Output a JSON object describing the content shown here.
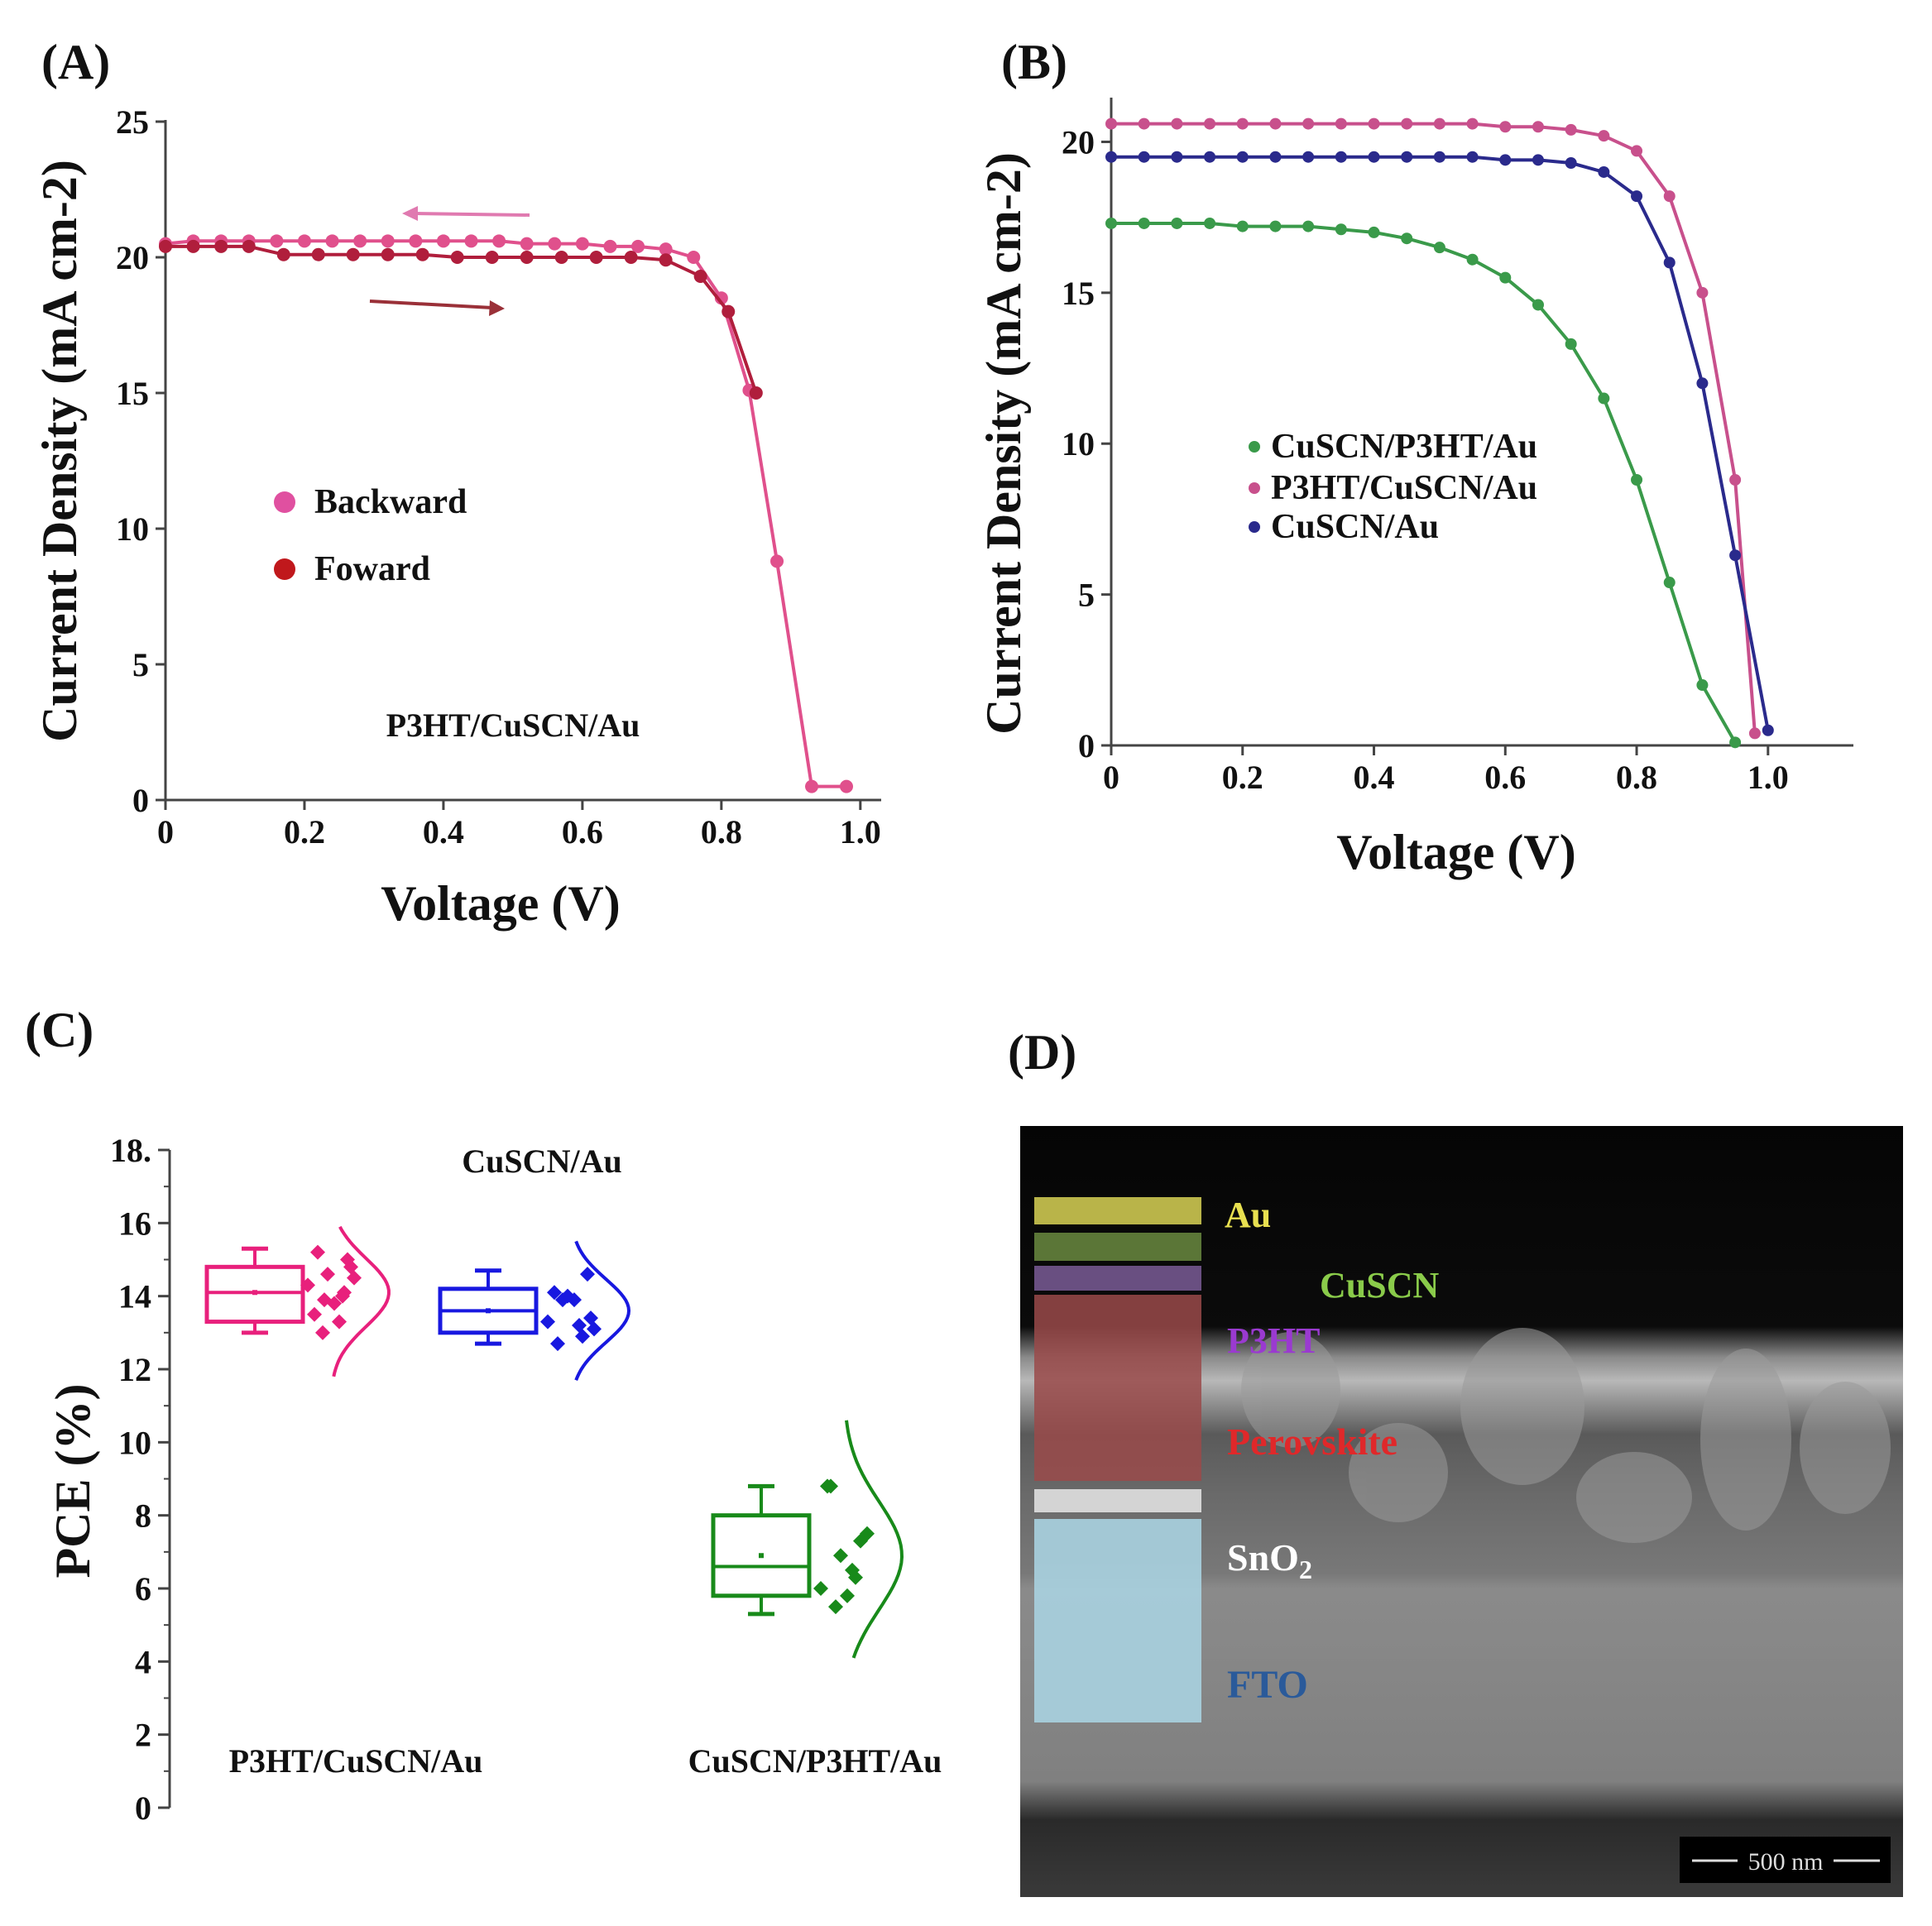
{
  "chart_data": [
    {
      "panel": "(A)",
      "type": "line",
      "xlabel": "Voltage (V)",
      "ylabel": "Current Density (mA cm-2)",
      "xlim": [
        0,
        1.03
      ],
      "ylim": [
        0,
        25
      ],
      "xticks": [
        0,
        0.2,
        0.4,
        0.6,
        0.8,
        1.0
      ],
      "xtick_labels": [
        "0",
        "0.2",
        "0.4",
        "0.6",
        "0.8",
        "1.0"
      ],
      "yticks": [
        0,
        5,
        10,
        15,
        20,
        25
      ],
      "legend_position": "middle-left",
      "annotation": "P3HT/CuSCN/Au",
      "arrows": [
        {
          "series": "Backward",
          "direction": "left"
        },
        {
          "series": "Foward",
          "direction": "right"
        }
      ],
      "series": [
        {
          "name": "Backward",
          "color": "#e0508c",
          "x": [
            0,
            0.04,
            0.08,
            0.12,
            0.16,
            0.2,
            0.24,
            0.28,
            0.32,
            0.36,
            0.4,
            0.44,
            0.48,
            0.52,
            0.56,
            0.6,
            0.64,
            0.68,
            0.72,
            0.76,
            0.8,
            0.84,
            0.88,
            0.93,
            0.98
          ],
          "y": [
            20.5,
            20.6,
            20.6,
            20.6,
            20.6,
            20.6,
            20.6,
            20.6,
            20.6,
            20.6,
            20.6,
            20.6,
            20.6,
            20.5,
            20.5,
            20.5,
            20.4,
            20.4,
            20.3,
            20.0,
            18.5,
            15.1,
            8.8,
            0.5,
            0.5
          ]
        },
        {
          "name": "Foward",
          "color": "#b01e3c",
          "x": [
            0,
            0.04,
            0.08,
            0.12,
            0.17,
            0.22,
            0.27,
            0.32,
            0.37,
            0.42,
            0.47,
            0.52,
            0.57,
            0.62,
            0.67,
            0.72,
            0.77,
            0.81,
            0.85
          ],
          "y": [
            20.4,
            20.4,
            20.4,
            20.4,
            20.1,
            20.1,
            20.1,
            20.1,
            20.1,
            20.0,
            20.0,
            20.0,
            20.0,
            20.0,
            20.0,
            19.9,
            19.3,
            18.0,
            15.0
          ]
        }
      ]
    },
    {
      "panel": "(B)",
      "type": "line",
      "xlabel": "Voltage (V)",
      "ylabel": "Current Density (mA cm-2)",
      "xlim": [
        0,
        1.13
      ],
      "ylim": [
        0,
        21
      ],
      "xticks": [
        0,
        0.2,
        0.4,
        0.6,
        0.8,
        1.0
      ],
      "xtick_labels": [
        "0",
        "0.2",
        "0.4",
        "0.6",
        "0.8",
        "1.0"
      ],
      "yticks": [
        0,
        5,
        10,
        15,
        20
      ],
      "legend_position": "center",
      "series": [
        {
          "name": "CuSCN/P3HT/Au",
          "color": "#3a9a4a",
          "x": [
            0,
            0.05,
            0.1,
            0.15,
            0.2,
            0.25,
            0.3,
            0.35,
            0.4,
            0.45,
            0.5,
            0.55,
            0.6,
            0.65,
            0.7,
            0.75,
            0.8,
            0.85,
            0.9,
            0.95
          ],
          "y": [
            17.3,
            17.3,
            17.3,
            17.3,
            17.2,
            17.2,
            17.2,
            17.1,
            17.0,
            16.8,
            16.5,
            16.1,
            15.5,
            14.6,
            13.3,
            11.5,
            8.8,
            5.4,
            2.0,
            0.1
          ]
        },
        {
          "name": "P3HT/CuSCN/Au",
          "color": "#c8508c",
          "x": [
            0,
            0.05,
            0.1,
            0.15,
            0.2,
            0.25,
            0.3,
            0.35,
            0.4,
            0.45,
            0.5,
            0.55,
            0.6,
            0.65,
            0.7,
            0.75,
            0.8,
            0.85,
            0.9,
            0.95,
            0.98
          ],
          "y": [
            20.6,
            20.6,
            20.6,
            20.6,
            20.6,
            20.6,
            20.6,
            20.6,
            20.6,
            20.6,
            20.6,
            20.6,
            20.5,
            20.5,
            20.4,
            20.2,
            19.7,
            18.2,
            15.0,
            8.8,
            0.4
          ]
        },
        {
          "name": "CuSCN/Au",
          "color": "#2a2a8c",
          "x": [
            0,
            0.05,
            0.1,
            0.15,
            0.2,
            0.25,
            0.3,
            0.35,
            0.4,
            0.45,
            0.5,
            0.55,
            0.6,
            0.65,
            0.7,
            0.75,
            0.8,
            0.85,
            0.9,
            0.95,
            1.0
          ],
          "y": [
            19.5,
            19.5,
            19.5,
            19.5,
            19.5,
            19.5,
            19.5,
            19.5,
            19.5,
            19.5,
            19.5,
            19.5,
            19.4,
            19.4,
            19.3,
            19.0,
            18.2,
            16.0,
            12.0,
            6.3,
            0.5
          ]
        }
      ]
    },
    {
      "panel": "(C)",
      "type": "box",
      "ylabel": "PCE (%)",
      "ylim": [
        0,
        18
      ],
      "yticks": [
        0,
        2,
        4,
        6,
        8,
        10,
        12,
        14,
        16,
        18
      ],
      "ytick_labels": [
        "0",
        "2",
        "4",
        "6",
        "8",
        "10",
        "12",
        "14",
        "16",
        "18."
      ],
      "groups": [
        {
          "label": "P3HT/CuSCN/Au",
          "color": "#e8207c",
          "whisker_low": 13.0,
          "q1": 13.3,
          "median": 14.1,
          "mean": 14.1,
          "q3": 14.8,
          "whisker_high": 15.3,
          "points": [
            14.3,
            14.0,
            13.0,
            14.5,
            13.5,
            13.8,
            15.0,
            14.6,
            13.3,
            15.2,
            14.8,
            13.9,
            14.1
          ],
          "dist_min": 11.8,
          "dist_peak": 14.1,
          "dist_max": 15.9
        },
        {
          "label": "CuSCN/Au",
          "color": "#1818e0",
          "whisker_low": 12.7,
          "q1": 13.0,
          "median": 13.6,
          "mean": 13.6,
          "q3": 14.2,
          "whisker_high": 14.7,
          "points": [
            13.3,
            12.9,
            13.9,
            13.1,
            14.1,
            13.9,
            14.6,
            14.0,
            13.2,
            12.7,
            13.4
          ],
          "dist_min": 11.7,
          "dist_peak": 13.6,
          "dist_max": 15.5
        },
        {
          "label": "CuSCN/P3HT/Au",
          "color": "#188a1a",
          "whisker_low": 5.3,
          "q1": 5.8,
          "median": 6.6,
          "mean": 6.9,
          "q3": 8.0,
          "whisker_high": 8.8,
          "points": [
            6.0,
            6.3,
            5.5,
            7.5,
            8.8,
            5.8,
            7.3,
            6.9,
            6.5,
            8.8
          ],
          "dist_min": 4.1,
          "dist_peak": 6.9,
          "dist_max": 10.6
        }
      ]
    }
  ],
  "panel_d": {
    "label": "(D)",
    "scale_bar": "500 nm",
    "layers": [
      {
        "name": "Au",
        "color": "#e8e050"
      },
      {
        "name": "CuSCN",
        "color": "#8acb4a"
      },
      {
        "name": "P3HT",
        "color": "#9a3ad0"
      },
      {
        "name": "Perovskite",
        "color": "#e0282a"
      },
      {
        "name": "SnO",
        "sub": "2",
        "color": "#ffffff"
      },
      {
        "name": "FTO",
        "color": "#2a5a9a"
      }
    ]
  }
}
